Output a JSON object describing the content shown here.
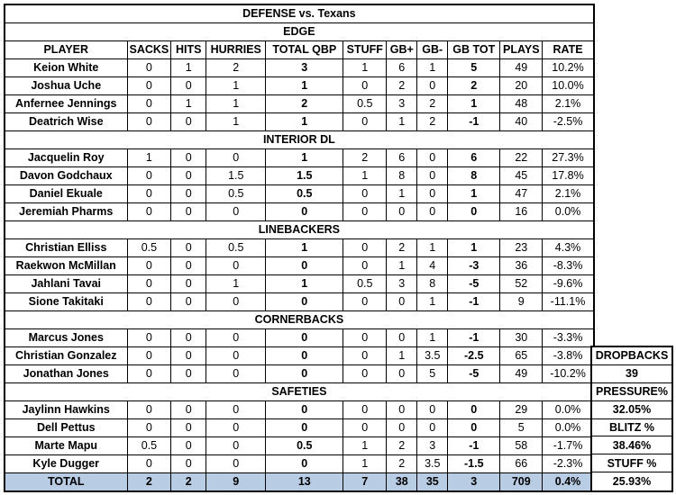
{
  "title": "DEFENSE vs. Texans",
  "colors": {
    "header_blue": "#B8CCE4",
    "highlight_yellow": "#FFFF00",
    "highlight_green": "#C6E0B4",
    "border_black": "#000000"
  },
  "chart_data": {
    "type": "table",
    "title": "DEFENSE vs. Texans",
    "columns": [
      "PLAYER",
      "SACKS",
      "HITS",
      "HURRIES",
      "TOTAL QBP",
      "STUFF",
      "GB+",
      "GB-",
      "GB TOT",
      "PLAYS",
      "RATE"
    ],
    "sections": [
      {
        "label": "EDGE",
        "players": [
          {
            "name": "Keion White",
            "values": [
              "0",
              "1",
              "2",
              "3",
              "1",
              "6",
              "1",
              "5",
              "49",
              "10.2%"
            ]
          },
          {
            "name": "Joshua Uche",
            "values": [
              "0",
              "0",
              "1",
              "1",
              "0",
              "2",
              "0",
              "2",
              "20",
              "10.0%"
            ]
          },
          {
            "name": "Anfernee Jennings",
            "values": [
              "0",
              "1",
              "1",
              "2",
              "0.5",
              "3",
              "2",
              "1",
              "48",
              "2.1%"
            ]
          },
          {
            "name": "Deatrich Wise",
            "values": [
              "0",
              "0",
              "1",
              "1",
              "0",
              "1",
              "2",
              "-1",
              "40",
              "-2.5%"
            ]
          }
        ]
      },
      {
        "label": "INTERIOR DL",
        "players": [
          {
            "name": "Jacquelin Roy",
            "values": [
              "1",
              "0",
              "0",
              "1",
              "2",
              "6",
              "0",
              "6",
              "22",
              "27.3%"
            ]
          },
          {
            "name": "Davon Godchaux",
            "values": [
              "0",
              "0",
              "1.5",
              "1.5",
              "1",
              "8",
              "0",
              "8",
              "45",
              "17.8%"
            ]
          },
          {
            "name": "Daniel Ekuale",
            "values": [
              "0",
              "0",
              "0.5",
              "0.5",
              "0",
              "1",
              "0",
              "1",
              "47",
              "2.1%"
            ]
          },
          {
            "name": "Jeremiah Pharms",
            "values": [
              "0",
              "0",
              "0",
              "0",
              "0",
              "0",
              "0",
              "0",
              "16",
              "0.0%"
            ]
          }
        ]
      },
      {
        "label": "LINEBACKERS",
        "players": [
          {
            "name": "Christian Elliss",
            "values": [
              "0.5",
              "0",
              "0.5",
              "1",
              "0",
              "2",
              "1",
              "1",
              "23",
              "4.3%"
            ]
          },
          {
            "name": "Raekwon McMillan",
            "values": [
              "0",
              "0",
              "0",
              "0",
              "0",
              "1",
              "4",
              "-3",
              "36",
              "-8.3%"
            ]
          },
          {
            "name": "Jahlani Tavai",
            "values": [
              "0",
              "0",
              "1",
              "1",
              "0.5",
              "3",
              "8",
              "-5",
              "52",
              "-9.6%"
            ]
          },
          {
            "name": "Sione Takitaki",
            "values": [
              "0",
              "0",
              "0",
              "0",
              "0",
              "0",
              "1",
              "-1",
              "9",
              "-11.1%"
            ]
          }
        ]
      },
      {
        "label": "CORNERBACKS",
        "players": [
          {
            "name": "Marcus Jones",
            "values": [
              "0",
              "0",
              "0",
              "0",
              "0",
              "0",
              "1",
              "-1",
              "30",
              "-3.3%"
            ]
          },
          {
            "name": "Christian Gonzalez",
            "values": [
              "0",
              "0",
              "0",
              "0",
              "0",
              "1",
              "3.5",
              "-2.5",
              "65",
              "-3.8%"
            ]
          },
          {
            "name": "Jonathan Jones",
            "values": [
              "0",
              "0",
              "0",
              "0",
              "0",
              "0",
              "5",
              "-5",
              "49",
              "-10.2%"
            ]
          }
        ]
      },
      {
        "label": "SAFETIES",
        "players": [
          {
            "name": "Jaylinn Hawkins",
            "values": [
              "0",
              "0",
              "0",
              "0",
              "0",
              "0",
              "0",
              "0",
              "29",
              "0.0%"
            ]
          },
          {
            "name": "Dell Pettus",
            "values": [
              "0",
              "0",
              "0",
              "0",
              "0",
              "0",
              "0",
              "0",
              "5",
              "0.0%"
            ]
          },
          {
            "name": "Marte Mapu",
            "values": [
              "0.5",
              "0",
              "0",
              "0.5",
              "1",
              "2",
              "3",
              "-1",
              "58",
              "-1.7%"
            ]
          },
          {
            "name": "Kyle Dugger",
            "values": [
              "0",
              "0",
              "0",
              "0",
              "1",
              "2",
              "3.5",
              "-1.5",
              "66",
              "-2.3%"
            ]
          }
        ]
      }
    ],
    "total": {
      "label": "TOTAL",
      "values": [
        "2",
        "2",
        "9",
        "13",
        "7",
        "38",
        "35",
        "3",
        "709",
        "0.4%"
      ]
    },
    "side_panel": [
      {
        "name": "dropbacks-label",
        "text": "DROPBACKS"
      },
      {
        "name": "dropbacks-value",
        "text": "39"
      },
      {
        "name": "pressure-label",
        "text": "PRESSURE%"
      },
      {
        "name": "pressure-value",
        "text": "32.05%"
      },
      {
        "name": "blitz-label",
        "text": "BLITZ %"
      },
      {
        "name": "blitz-value",
        "text": "38.46%"
      },
      {
        "name": "stuff-label",
        "text": "STUFF %"
      },
      {
        "name": "stuff-value",
        "text": "25.93%"
      }
    ]
  }
}
